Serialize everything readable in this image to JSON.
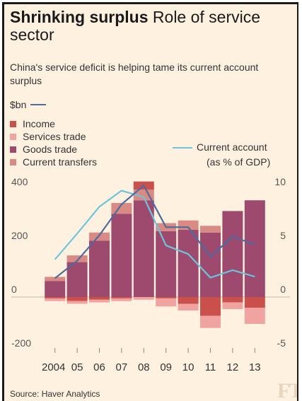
{
  "header": {
    "title_bold": "Shrinking surplus",
    "title_rest": "Role of service sector",
    "subtitle": "China's service deficit is helping tame its current account surplus",
    "unit_label": "$bn"
  },
  "footer": {
    "source": "Source: Haver Analytics",
    "logo": "FT"
  },
  "colors": {
    "background": "#fff1e0",
    "income": "#c9504b",
    "services": "#f0a3a0",
    "goods": "#9e4a6e",
    "transfers": "#d98a84",
    "bn_line": "#4d6b9e",
    "ca_line": "#6cc5dc"
  },
  "chart_data": {
    "type": "bar",
    "categories": [
      "2004",
      "05",
      "06",
      "07",
      "08",
      "09",
      "10",
      "11",
      "12",
      "13"
    ],
    "series": [
      {
        "name": "Income",
        "values": [
          -5,
          -15,
          -10,
          -5,
          30,
          -5,
          -25,
          -70,
          -20,
          -40
        ],
        "axis": "left"
      },
      {
        "name": "Services trade",
        "values": [
          -10,
          -10,
          -10,
          -10,
          -10,
          -30,
          -25,
          -45,
          -25,
          -60
        ],
        "axis": "left"
      },
      {
        "name": "Goods trade",
        "values": [
          60,
          130,
          210,
          310,
          360,
          245,
          250,
          240,
          320,
          360
        ],
        "axis": "left"
      },
      {
        "name": "Current transfers",
        "values": [
          15,
          25,
          30,
          40,
          40,
          30,
          35,
          25,
          0,
          0
        ],
        "axis": "left"
      },
      {
        "name": "$bn",
        "values": [
          70,
          135,
          230,
          345,
          415,
          260,
          260,
          150,
          225,
          195
        ],
        "axis": "left",
        "kind": "line"
      },
      {
        "name": "Current account",
        "values": [
          3.5,
          5.9,
          8.4,
          9.9,
          9.3,
          4.8,
          4.0,
          1.8,
          2.5,
          1.9
        ],
        "axis": "right",
        "kind": "line"
      }
    ],
    "ylim_left": [
      -200,
      400
    ],
    "ylim_right": [
      -5,
      10
    ],
    "yticks_left": [
      "400",
      "200",
      "0",
      "-200"
    ],
    "yticks_right": [
      "10",
      "5",
      "0",
      "-5"
    ],
    "ca_label_line1": "Current account",
    "ca_label_line2": "(as % of GDP)",
    "legend_placement": "top-left",
    "grid": false
  }
}
